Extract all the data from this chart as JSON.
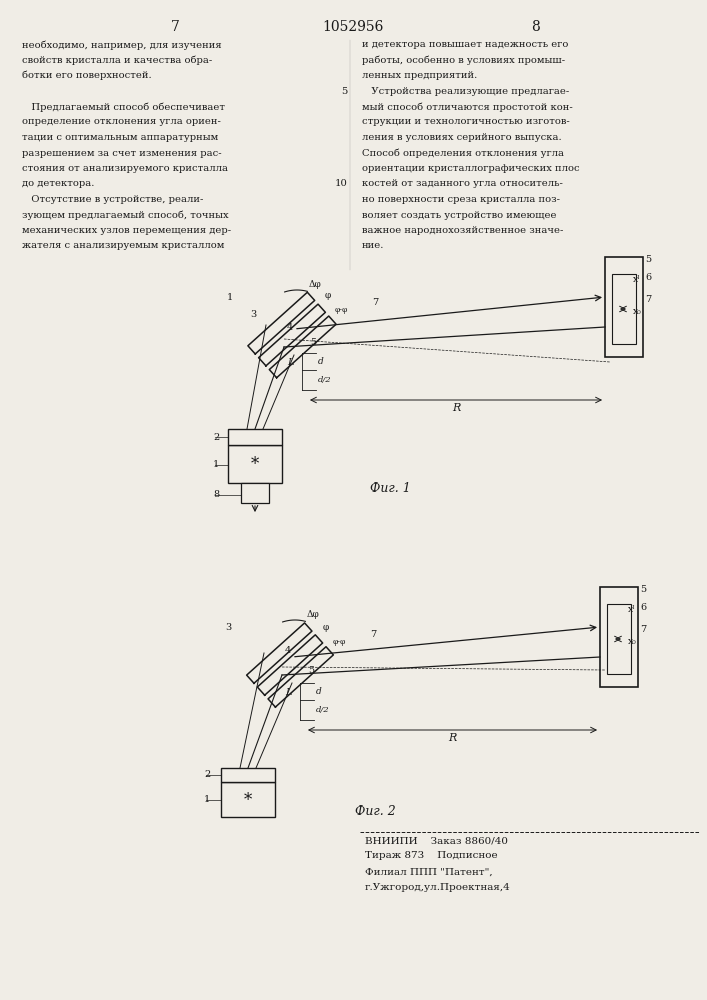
{
  "page_number_left": "7",
  "page_number_center": "1052956",
  "page_number_right": "8",
  "bg_color": "#f0ede6",
  "text_color": "#1a1a1a",
  "left_col_text": [
    "необходимо, например, для изучения",
    "свойств кристалла и качества обра-",
    "ботки его поверхностей.",
    "",
    "   Предлагаемый способ обеспечивает",
    "определение отклонения угла ориен-",
    "тации с оптимальным аппаратурным",
    "разрешением за счет изменения рас-",
    "стояния от анализируемого кристалла",
    "до детектора.",
    "   Отсутствие в устройстве, реали-",
    "зующем предлагаемый способ, точных",
    "механических узлов перемещения дер-",
    "жателя с анализируемым кристаллом"
  ],
  "right_col_text": [
    "и детектора повышает надежность его",
    "работы, особенно в условиях промыш-",
    "ленных предприятий.",
    "   Устройства реализующие предлагае-",
    "мый способ отличаются простотой кон-",
    "струкции и технологичностью изготов-",
    "ления в условиях серийного выпуска.",
    "Способ определения отклонения угла",
    "ориентации кристаллографических плос",
    "костей от заданного угла относитель-",
    "но поверхности среза кристалла поз-",
    "воляет создать устройство имеющее",
    "важное народнохозяйственное значе-",
    "ние."
  ],
  "fig1_label": "Фиг. 1",
  "fig2_label": "Фиг. 2",
  "footer_line1": "ВНИИПИ    Заказ 8860/40",
  "footer_line2": "Тираж 873    Подписное",
  "footer_line3": "Филиал ППП \"Патент\",",
  "footer_line4": "г.Ужгород,ул.Проектная,4",
  "line_num_5_idx": 3,
  "line_num_10_idx": 9
}
